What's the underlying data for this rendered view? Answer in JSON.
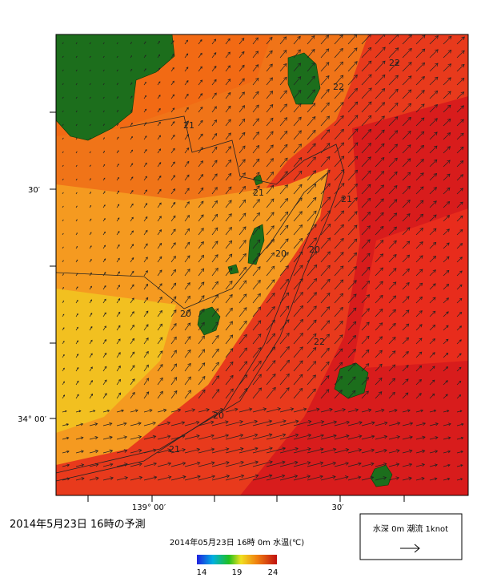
{
  "title": "2014年5月23日 16時の予測",
  "axes": {
    "left_labels": [
      "30′",
      "34° 00′"
    ],
    "bottom_labels": [
      "139° 00′",
      "30′"
    ]
  },
  "contour_labels": [
    "22",
    "22",
    "21",
    "21",
    "20",
    "20",
    "21",
    "20",
    "22",
    "20",
    "21"
  ],
  "colorbar": {
    "label": "2014年05月23日 16時 0m 水温(℃)",
    "ticks": [
      "14",
      "19",
      "24"
    ]
  },
  "legend": {
    "text": "水深 0m 潮流 1knot"
  }
}
